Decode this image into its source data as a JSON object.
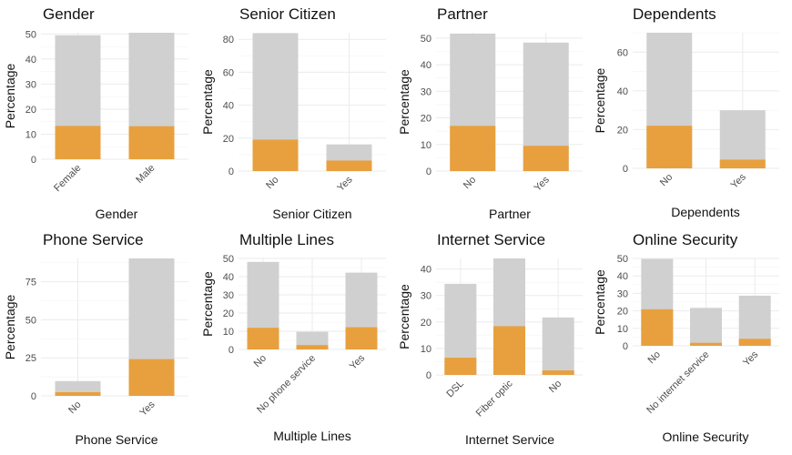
{
  "colors": {
    "total": "#d0d0d0",
    "churn": "#e8a03e",
    "grid": "#ebebeb",
    "text": "#111111",
    "tick": "#4d4d4d"
  },
  "chart_data": [
    {
      "type": "bar",
      "title": "Gender",
      "xlabel": "Gender",
      "ylabel": "Percentage",
      "categories": [
        "Female",
        "Male"
      ],
      "series": [
        {
          "values": [
            49.5,
            50.5
          ]
        },
        {
          "values": [
            13.3,
            13.2
          ]
        }
      ],
      "ylim": [
        0,
        50.5
      ],
      "yticks": [
        0,
        10,
        20,
        30,
        40,
        50
      ],
      "grid": true
    },
    {
      "type": "bar",
      "title": "Senior Citizen",
      "xlabel": "Senior Citizen",
      "ylabel": "Percentage",
      "categories": [
        "No",
        "Yes"
      ],
      "series": [
        {
          "values": [
            83.8,
            16.2
          ]
        },
        {
          "values": [
            19.1,
            6.4
          ]
        }
      ],
      "ylim": [
        0,
        84
      ],
      "yticks": [
        0,
        20,
        40,
        60,
        80
      ],
      "grid": true
    },
    {
      "type": "bar",
      "title": "Partner",
      "xlabel": "Partner",
      "ylabel": "Percentage",
      "categories": [
        "No",
        "Yes"
      ],
      "series": [
        {
          "values": [
            51.7,
            48.3
          ]
        },
        {
          "values": [
            17.0,
            9.5
          ]
        }
      ],
      "ylim": [
        0,
        52
      ],
      "yticks": [
        0,
        10,
        20,
        30,
        40,
        50
      ],
      "grid": true
    },
    {
      "type": "bar",
      "title": "Dependents",
      "xlabel": "Dependents",
      "ylabel": "Percentage",
      "categories": [
        "No",
        "Yes"
      ],
      "series": [
        {
          "values": [
            70.0,
            30.0
          ]
        },
        {
          "values": [
            22.0,
            4.5
          ]
        }
      ],
      "ylim": [
        0,
        70
      ],
      "yticks": [
        0,
        20,
        40,
        60
      ],
      "grid": true
    },
    {
      "type": "bar",
      "title": "Phone Service",
      "xlabel": "Phone Service",
      "ylabel": "Percentage",
      "categories": [
        "No",
        "Yes"
      ],
      "series": [
        {
          "values": [
            9.7,
            90.3
          ]
        },
        {
          "values": [
            2.4,
            24.1
          ]
        }
      ],
      "ylim": [
        0,
        90.3
      ],
      "yticks": [
        0,
        25,
        50,
        75
      ],
      "grid": true
    },
    {
      "type": "bar",
      "title": "Multiple Lines",
      "xlabel": "Multiple Lines",
      "ylabel": "Percentage",
      "categories": [
        "No",
        "No phone service",
        "Yes"
      ],
      "series": [
        {
          "values": [
            48.1,
            9.7,
            42.2
          ]
        },
        {
          "values": [
            11.9,
            2.4,
            12.2
          ]
        }
      ],
      "ylim": [
        0,
        50
      ],
      "yticks": [
        0,
        10,
        20,
        30,
        40,
        50
      ],
      "grid": true
    },
    {
      "type": "bar",
      "title": "Internet Service",
      "xlabel": "Internet Service",
      "ylabel": "Percentage",
      "categories": [
        "DSL",
        "Fiber optic",
        "No"
      ],
      "series": [
        {
          "values": [
            34.4,
            44.0,
            21.7
          ]
        },
        {
          "values": [
            6.5,
            18.4,
            1.7
          ]
        }
      ],
      "ylim": [
        0,
        44
      ],
      "yticks": [
        0,
        10,
        20,
        30,
        40
      ],
      "grid": true
    },
    {
      "type": "bar",
      "title": "Online Security",
      "xlabel": "Online Security",
      "ylabel": "Percentage",
      "categories": [
        "No",
        "No internet service",
        "Yes"
      ],
      "series": [
        {
          "values": [
            49.7,
            21.7,
            28.7
          ]
        },
        {
          "values": [
            20.9,
            1.7,
            4.0
          ]
        }
      ],
      "ylim": [
        0,
        50
      ],
      "yticks": [
        0,
        10,
        20,
        30,
        40,
        50
      ],
      "grid": true
    }
  ]
}
